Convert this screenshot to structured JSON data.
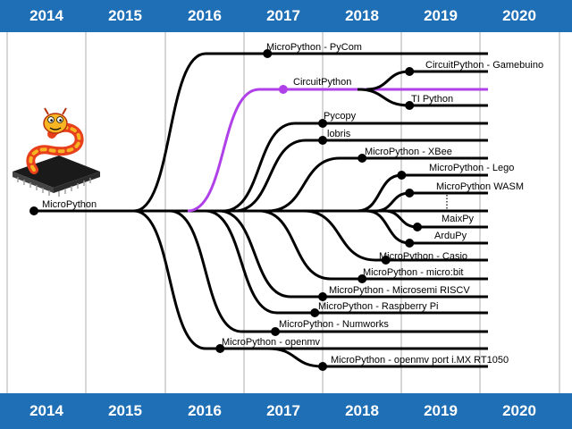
{
  "years": [
    "2014",
    "2015",
    "2016",
    "2017",
    "2018",
    "2019",
    "2020"
  ],
  "colors": {
    "band": "#1f6fb6",
    "line": "#000000",
    "highlight": "#b040e8",
    "gridline": "#9a9a9a"
  },
  "root": {
    "label": "MicroPython",
    "year": 2013.9
  },
  "branches": [
    {
      "id": "pycom",
      "label": "MicroPython - PyCom",
      "year": 2016.8
    },
    {
      "id": "circuitpython",
      "label": "CircuitPython",
      "year": 2017.0,
      "highlight": true
    },
    {
      "id": "gamebuino",
      "label": "CircuitPython - Gamebuino",
      "year": 2018.6,
      "parent": "circuitpython"
    },
    {
      "id": "tipython",
      "label": "TI Python",
      "year": 2018.6,
      "parent": "circuitpython"
    },
    {
      "id": "pycopy",
      "label": "Pycopy",
      "year": 2017.5
    },
    {
      "id": "lobris",
      "label": "lobris",
      "year": 2017.5
    },
    {
      "id": "xbee",
      "label": "MicroPython - XBee",
      "year": 2018.0
    },
    {
      "id": "lego",
      "label": "MicroPython - Lego",
      "year": 2018.5
    },
    {
      "id": "wasm",
      "label": "MicroPython WASM",
      "year": 2018.6
    },
    {
      "id": "maixpy",
      "label": "MaixPy",
      "year": 2018.7
    },
    {
      "id": "ardupy",
      "label": "ArduPy",
      "year": 2018.6
    },
    {
      "id": "casio",
      "label": "MicroPython - Casio",
      "year": 2018.3
    },
    {
      "id": "microbit",
      "label": "MicroPython - micro:bit",
      "year": 2018.0
    },
    {
      "id": "microsemi",
      "label": "MicroPython - Microsemi RISCV",
      "year": 2017.5
    },
    {
      "id": "raspberry",
      "label": "MicroPython - Raspberry Pi",
      "year": 2017.4
    },
    {
      "id": "numworks",
      "label": "MicroPython - Numworks",
      "year": 2016.9
    },
    {
      "id": "openmv",
      "label": "MicroPython - openmv",
      "year": 2016.2
    },
    {
      "id": "openmv-imx",
      "label": "MicroPython - openmv port i.MX RT1050",
      "year": 2017.5,
      "parent": "openmv"
    }
  ]
}
